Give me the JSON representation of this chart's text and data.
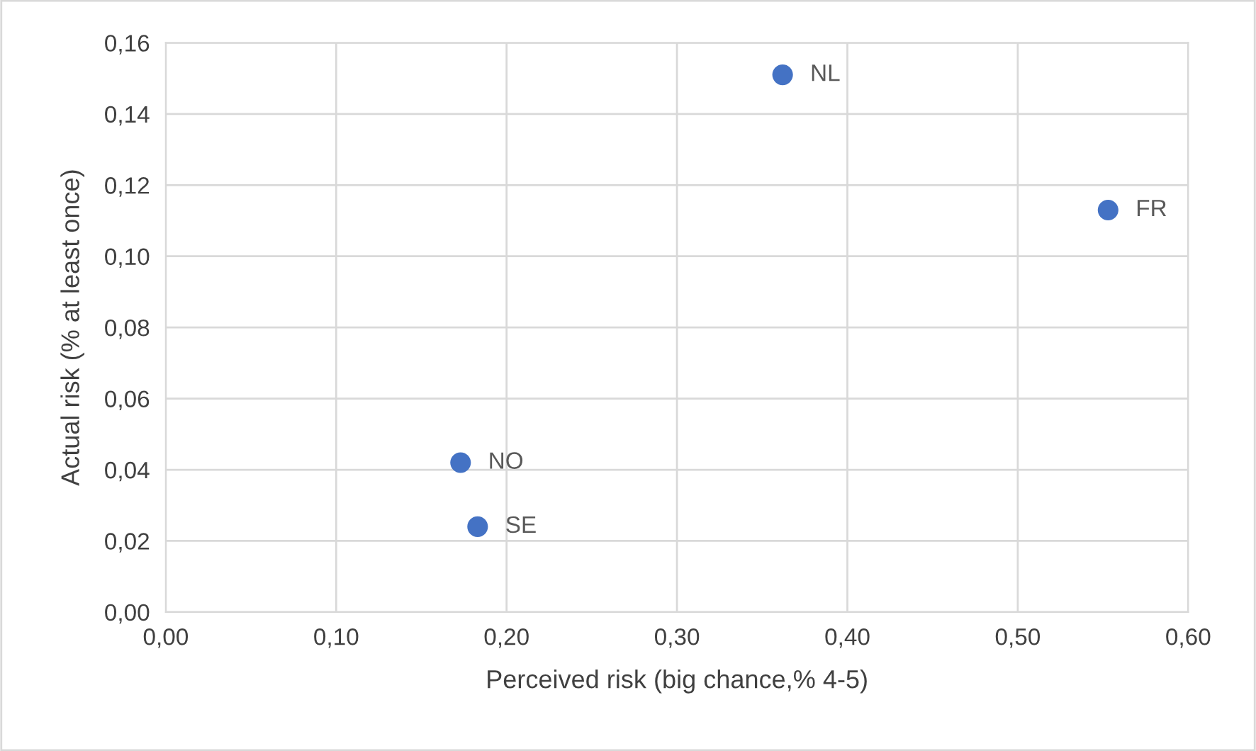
{
  "chart_data": {
    "type": "scatter",
    "xlabel": "Perceived risk (big chance,% 4-5)",
    "ylabel": "Actual risk (% at least once)",
    "x": [
      0.362,
      0.553,
      0.173,
      0.183
    ],
    "series": [
      {
        "color": "#4472c4",
        "values": [
          0.151,
          0.113,
          0.042,
          0.024
        ]
      }
    ],
    "annotations": [
      {
        "text": "NL",
        "x": 0.362,
        "y": 0.151
      },
      {
        "text": "FR",
        "x": 0.553,
        "y": 0.113
      },
      {
        "text": "NO",
        "x": 0.173,
        "y": 0.042
      },
      {
        "text": "SE",
        "x": 0.183,
        "y": 0.024
      }
    ],
    "xlim": [
      0,
      0.6
    ],
    "xticks": [
      {
        "value": 0,
        "label": "0,00"
      },
      {
        "value": 0.1,
        "label": "0,10"
      },
      {
        "value": 0.2,
        "label": "0,20"
      },
      {
        "value": 0.3,
        "label": "0,30"
      },
      {
        "value": 0.4,
        "label": "0,40"
      },
      {
        "value": 0.5,
        "label": "0,50"
      },
      {
        "value": 0.6,
        "label": "0,60"
      }
    ],
    "ylim": [
      0,
      0.16
    ],
    "yticks": [
      {
        "value": 0,
        "label": "0,00"
      },
      {
        "value": 0.02,
        "label": "0,02"
      },
      {
        "value": 0.04,
        "label": "0,04"
      },
      {
        "value": 0.06,
        "label": "0,06"
      },
      {
        "value": 0.08,
        "label": "0,08"
      },
      {
        "value": 0.1,
        "label": "0,10"
      },
      {
        "value": 0.12,
        "label": "0,12"
      },
      {
        "value": 0.14,
        "label": "0,14"
      },
      {
        "value": 0.16,
        "label": "0,16"
      }
    ],
    "grid": true,
    "legend": false,
    "marker": "circle"
  }
}
